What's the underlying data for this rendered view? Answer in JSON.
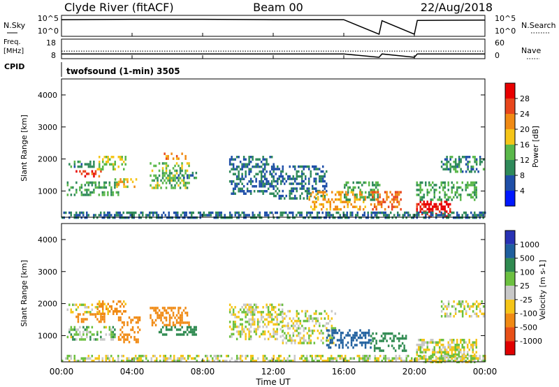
{
  "header": {
    "station": "Clyde River (fitACF)",
    "beam": "Beam 00",
    "date": "22/Aug/2018"
  },
  "nsky_panel": {
    "left_label": "N.Sky",
    "right_label": "N.Search",
    "left_ticks": [
      "10^5",
      "10^0"
    ],
    "right_ticks": [
      "10^5",
      "10^0"
    ]
  },
  "freq_panel": {
    "left_label_line1": "Freq.",
    "left_label_line2": "[MHz]",
    "right_label": "Nave",
    "left_ticks": [
      "18",
      "8"
    ],
    "right_ticks": [
      "60",
      "0"
    ]
  },
  "cpid": {
    "label": "CPID",
    "text": "twofsound (1-min) 3505"
  },
  "time_axis": {
    "title": "Time UT",
    "ticks": [
      "00:00",
      "04:00",
      "08:00",
      "12:00",
      "16:00",
      "20:00",
      "00:00"
    ]
  },
  "power_colorbar": {
    "title": "Power [dB]",
    "ticks": [
      "4",
      "8",
      "12",
      "16",
      "20",
      "24",
      "28"
    ],
    "colors": [
      "#0018ff",
      "#1f4fa8",
      "#2f8a5a",
      "#5ab84a",
      "#f5c518",
      "#f08a14",
      "#e8461c",
      "#e80000"
    ]
  },
  "velocity_colorbar": {
    "title": "Velocity [m s-1]",
    "ticks": [
      "1000",
      "500",
      "100",
      "25",
      "-25",
      "-100",
      "-500",
      "-1000"
    ],
    "colors": [
      "#2832b4",
      "#1f5f9e",
      "#2f8a50",
      "#6cc040",
      "#c8c8c8",
      "#f5c518",
      "#f08a14",
      "#e85018",
      "#e00000"
    ]
  },
  "chart_data": [
    {
      "type": "line",
      "title": "N.Sky / N.Search",
      "x": [
        "00:00",
        "04:00",
        "08:00",
        "12:00",
        "16:00",
        "18:00",
        "18:10",
        "20:00",
        "20:10",
        "24:00"
      ],
      "series": [
        {
          "values": [
            4.2,
            4.3,
            4.3,
            4.2,
            4.2,
            0.2,
            3.9,
            0.2,
            4.0,
            4.1
          ]
        }
      ],
      "ylim": [
        0,
        5
      ]
    },
    {
      "type": "line",
      "title": "Freq. [MHz]",
      "x": [
        "00:00",
        "04:00",
        "08:00",
        "12:00",
        "16:00",
        "18:00",
        "18:10",
        "20:00",
        "20:10",
        "24:00"
      ],
      "series": [
        {
          "name": "Freq.",
          "values": [
            10.0,
            10.0,
            10.0,
            10.0,
            10.0,
            8.0,
            10.0,
            8.0,
            10.0,
            10.0
          ]
        },
        {
          "name": "Nave",
          "values": [
            22,
            22,
            22,
            22,
            22,
            22,
            22,
            22,
            22,
            22
          ]
        }
      ],
      "ylim": [
        8,
        18
      ]
    },
    {
      "type": "heatmap",
      "title": "Power [dB]",
      "xlabel": "Time UT",
      "ylabel": "Slant Range [km]",
      "ylim": [
        180,
        4500
      ],
      "xlim": [
        0,
        24
      ],
      "regions": [
        {
          "t": [
            0.4,
            1.8
          ],
          "r": [
            1750,
            1950
          ],
          "v": 10
        },
        {
          "t": [
            0.8,
            2.2
          ],
          "r": [
            1450,
            1650
          ],
          "v": 26
        },
        {
          "t": [
            2.0,
            3.6
          ],
          "r": [
            1650,
            2100
          ],
          "v": 16
        },
        {
          "t": [
            0.3,
            3.2
          ],
          "r": [
            900,
            1300
          ],
          "v": 12
        },
        {
          "t": [
            3.0,
            4.2
          ],
          "r": [
            1100,
            1400
          ],
          "v": 18
        },
        {
          "t": [
            5.0,
            7.2
          ],
          "r": [
            1100,
            1900
          ],
          "v": 14
        },
        {
          "t": [
            5.8,
            7.0
          ],
          "r": [
            2000,
            2200
          ],
          "v": 22
        },
        {
          "t": [
            6.5,
            7.6
          ],
          "r": [
            1400,
            1600
          ],
          "v": 10
        },
        {
          "t": [
            9.5,
            12.0
          ],
          "r": [
            900,
            2100
          ],
          "v": 8
        },
        {
          "t": [
            12.0,
            15.0
          ],
          "r": [
            800,
            1800
          ],
          "v": 8
        },
        {
          "t": [
            14.0,
            17.2
          ],
          "r": [
            400,
            1000
          ],
          "v": 20
        },
        {
          "t": [
            16.0,
            18.0
          ],
          "r": [
            700,
            1300
          ],
          "v": 12
        },
        {
          "t": [
            17.5,
            19.2
          ],
          "r": [
            400,
            1000
          ],
          "v": 24
        },
        {
          "t": [
            20.1,
            22.0
          ],
          "r": [
            200,
            700
          ],
          "v": 30
        },
        {
          "t": [
            20.1,
            23.5
          ],
          "r": [
            700,
            1300
          ],
          "v": 12
        },
        {
          "t": [
            21.5,
            23.9
          ],
          "r": [
            1600,
            2100
          ],
          "v": 10
        },
        {
          "t": [
            0.0,
            24.0
          ],
          "r": [
            180,
            360
          ],
          "v": 8
        }
      ]
    },
    {
      "type": "heatmap",
      "title": "Velocity [m s-1]",
      "xlabel": "Time UT",
      "ylabel": "Slant Range [km]",
      "ylim": [
        180,
        4500
      ],
      "xlim": [
        0,
        24
      ],
      "regions": [
        {
          "t": [
            0.2,
            2.0
          ],
          "r": [
            1700,
            2000
          ],
          "v": 0
        },
        {
          "t": [
            0.8,
            2.4
          ],
          "r": [
            1400,
            1700
          ],
          "v": -200
        },
        {
          "t": [
            2.0,
            3.6
          ],
          "r": [
            1700,
            2100
          ],
          "v": -150
        },
        {
          "t": [
            0.3,
            3.0
          ],
          "r": [
            900,
            1300
          ],
          "v": 60
        },
        {
          "t": [
            3.2,
            4.4
          ],
          "r": [
            800,
            1600
          ],
          "v": -300
        },
        {
          "t": [
            5.0,
            7.2
          ],
          "r": [
            1300,
            1900
          ],
          "v": -200
        },
        {
          "t": [
            5.5,
            7.6
          ],
          "r": [
            1000,
            1300
          ],
          "v": 300
        },
        {
          "t": [
            9.5,
            12.5
          ],
          "r": [
            900,
            2000
          ],
          "v": 0
        },
        {
          "t": [
            12.5,
            15.5
          ],
          "r": [
            800,
            1800
          ],
          "v": 0
        },
        {
          "t": [
            15.0,
            17.5
          ],
          "r": [
            600,
            1200
          ],
          "v": 600
        },
        {
          "t": [
            17.5,
            19.5
          ],
          "r": [
            500,
            1100
          ],
          "v": 300
        },
        {
          "t": [
            20.1,
            23.5
          ],
          "r": [
            200,
            900
          ],
          "v": 0
        },
        {
          "t": [
            21.5,
            23.9
          ],
          "r": [
            1600,
            2100
          ],
          "v": 0
        },
        {
          "t": [
            0.0,
            24.0
          ],
          "r": [
            180,
            400
          ],
          "v": 0
        }
      ]
    }
  ]
}
